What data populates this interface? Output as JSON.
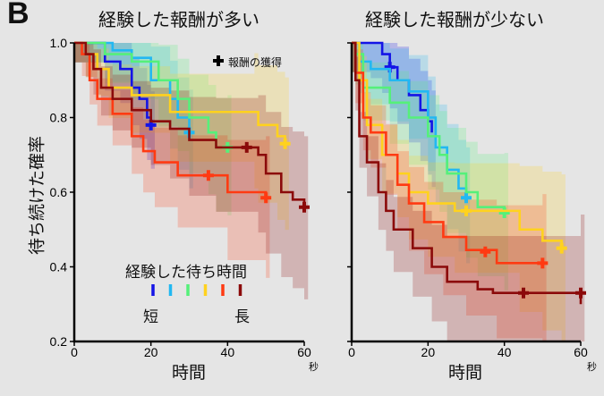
{
  "figure": {
    "panel_letter": "B",
    "y_label": "待ち続けた確率",
    "x_label": "時間",
    "x_unit": "秒",
    "legend": {
      "marker_label": "報酬の獲得",
      "wait_title": "経験した待ち時間",
      "short_label": "短",
      "long_label": "長"
    }
  },
  "chart_data": [
    {
      "type": "line",
      "title": "経験した報酬が多い",
      "xlabel": "時間",
      "ylabel": "待ち続けた確率",
      "xlim": [
        0,
        60
      ],
      "ylim": [
        0.2,
        1.0
      ],
      "xticks": [
        "0",
        "20",
        "40",
        "60"
      ],
      "yticks": [
        "0.2",
        "0.4",
        "0.6",
        "0.8",
        "1.0"
      ],
      "series": [
        {
          "name": "短",
          "color": "#1414e6",
          "x": [
            0,
            8,
            12,
            15,
            17,
            19,
            20
          ],
          "y": [
            1.0,
            0.95,
            0.93,
            0.88,
            0.85,
            0.8,
            0.78
          ],
          "reward_marker": [
            20,
            0.78
          ]
        },
        {
          "name": "2",
          "color": "#22b8f2",
          "x": [
            0,
            10,
            15,
            20,
            25,
            27,
            30
          ],
          "y": [
            1.0,
            0.98,
            0.96,
            0.9,
            0.85,
            0.8,
            0.76
          ],
          "reward_marker": [
            30,
            0.76
          ]
        },
        {
          "name": "3",
          "color": "#55f07a",
          "x": [
            0,
            8,
            15,
            22,
            27,
            30,
            35,
            37,
            40
          ],
          "y": [
            1.0,
            0.97,
            0.95,
            0.9,
            0.85,
            0.8,
            0.76,
            0.72,
            0.72
          ],
          "reward_marker": [
            40,
            0.72
          ]
        },
        {
          "name": "4",
          "color": "#ffd21e",
          "x": [
            0,
            3,
            6,
            9,
            15,
            25,
            47,
            48,
            53,
            55
          ],
          "y": [
            1.0,
            0.97,
            0.93,
            0.88,
            0.86,
            0.815,
            0.815,
            0.78,
            0.75,
            0.73
          ],
          "reward_marker": [
            55,
            0.73
          ]
        },
        {
          "name": "5",
          "color": "#ff3a12",
          "x": [
            0,
            2,
            4,
            6,
            10,
            15,
            18,
            21,
            27,
            40,
            50
          ],
          "y": [
            1.0,
            0.97,
            0.9,
            0.85,
            0.81,
            0.75,
            0.71,
            0.68,
            0.645,
            0.6,
            0.585
          ],
          "reward_marker": [
            50,
            0.585
          ],
          "extra_markers": [
            [
              35,
              0.645
            ]
          ]
        },
        {
          "name": "長",
          "color": "#8b0a0a",
          "x": [
            0,
            3,
            5,
            7,
            10,
            15,
            20,
            25,
            30,
            37,
            48,
            50,
            54,
            57,
            60
          ],
          "y": [
            1.0,
            0.97,
            0.93,
            0.88,
            0.85,
            0.82,
            0.79,
            0.77,
            0.74,
            0.72,
            0.7,
            0.65,
            0.6,
            0.58,
            0.56
          ],
          "reward_marker": [
            60,
            0.56
          ],
          "extra_markers": [
            [
              45,
              0.72
            ]
          ]
        }
      ]
    },
    {
      "type": "line",
      "title": "経験した報酬が少ない",
      "xlabel": "時間",
      "ylabel": "",
      "xlim": [
        0,
        60
      ],
      "ylim": [
        0.2,
        1.0
      ],
      "xticks": [
        "0",
        "20",
        "40",
        "60"
      ],
      "yticks": [],
      "series": [
        {
          "name": "短",
          "color": "#1414e6",
          "x": [
            0,
            5,
            8,
            10,
            12,
            15,
            18,
            20,
            21
          ],
          "y": [
            1.0,
            1.0,
            0.97,
            0.935,
            0.9,
            0.86,
            0.82,
            0.79,
            0.76
          ],
          "reward_marker": [
            10,
            0.935
          ]
        },
        {
          "name": "2",
          "color": "#22b8f2",
          "x": [
            0,
            2,
            5,
            10,
            15,
            20,
            22,
            25,
            28,
            30
          ],
          "y": [
            1.0,
            0.95,
            0.93,
            0.9,
            0.87,
            0.8,
            0.72,
            0.66,
            0.61,
            0.585
          ],
          "reward_marker": [
            30,
            0.585
          ]
        },
        {
          "name": "3",
          "color": "#55f07a",
          "x": [
            0,
            1,
            3,
            10,
            15,
            20,
            23,
            25,
            30,
            33,
            40
          ],
          "y": [
            1.0,
            0.97,
            0.88,
            0.84,
            0.8,
            0.75,
            0.7,
            0.65,
            0.6,
            0.56,
            0.545
          ],
          "reward_marker": [
            40,
            0.545
          ]
        },
        {
          "name": "4",
          "color": "#ffd21e",
          "x": [
            0,
            2,
            4,
            8,
            12,
            15,
            20,
            27,
            44,
            50,
            55
          ],
          "y": [
            1.0,
            0.9,
            0.78,
            0.7,
            0.65,
            0.6,
            0.57,
            0.55,
            0.5,
            0.47,
            0.45
          ],
          "reward_marker": [
            55,
            0.45
          ],
          "extra_markers": [
            [
              30,
              0.55
            ]
          ]
        },
        {
          "name": "5",
          "color": "#ff3a12",
          "x": [
            0,
            1,
            3,
            5,
            9,
            12,
            15,
            19,
            24,
            30,
            38,
            50
          ],
          "y": [
            1.0,
            0.92,
            0.8,
            0.76,
            0.7,
            0.62,
            0.57,
            0.52,
            0.48,
            0.445,
            0.41,
            0.41
          ],
          "reward_marker": [
            50,
            0.41
          ],
          "extra_markers": [
            [
              35,
              0.44
            ]
          ]
        },
        {
          "name": "長",
          "color": "#8b0a0a",
          "x": [
            0,
            1,
            2,
            4,
            7,
            9,
            11,
            16,
            21,
            25,
            33,
            37,
            60
          ],
          "y": [
            1.0,
            0.9,
            0.75,
            0.68,
            0.6,
            0.55,
            0.5,
            0.45,
            0.4,
            0.36,
            0.34,
            0.33,
            0.33
          ],
          "reward_marker": [
            60,
            0.33
          ],
          "extra_markers": [
            [
              45,
              0.33
            ]
          ],
          "end_drop": 0.3
        }
      ]
    }
  ]
}
